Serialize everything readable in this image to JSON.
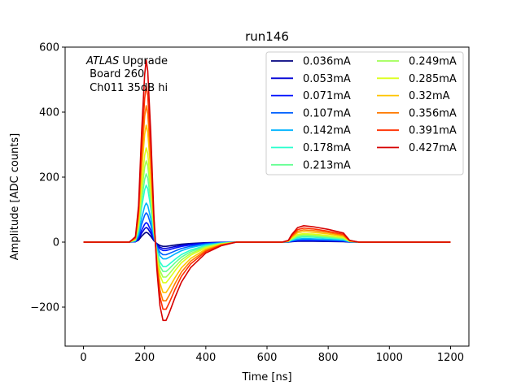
{
  "chart_data": {
    "type": "line",
    "title": "run146",
    "xlabel": "Time [ns]",
    "ylabel": "Amplitude [ADC counts]",
    "xlim": [
      -60,
      1260
    ],
    "ylim": [
      -320,
      600
    ],
    "xticks": [
      0,
      200,
      400,
      600,
      800,
      1000,
      1200
    ],
    "yticks": [
      -200,
      0,
      200,
      400,
      600
    ],
    "ytick_labels": [
      "−200",
      "0",
      "200",
      "400",
      "600"
    ],
    "annotation": {
      "italic": "ATLAS",
      "line1_rest": " Upgrade",
      "line2": " Board 260",
      "line3": " Ch011 35dB hi"
    },
    "legend_position": "upper right",
    "legend_columns": 2,
    "grid": false,
    "x": [
      0,
      25,
      50,
      75,
      100,
      125,
      150,
      170,
      180,
      190,
      200,
      205,
      210,
      220,
      230,
      240,
      250,
      260,
      270,
      280,
      300,
      320,
      350,
      400,
      450,
      500,
      550,
      600,
      650,
      670,
      680,
      700,
      720,
      750,
      800,
      850,
      870,
      900,
      950,
      1000,
      1050,
      1100,
      1150,
      1200
    ],
    "pulse_shape": [
      0,
      0,
      0,
      0,
      0,
      0,
      0,
      0.03,
      0.2,
      0.6,
      0.92,
      1.0,
      0.94,
      0.6,
      0.15,
      -0.15,
      -0.35,
      -0.43,
      -0.43,
      -0.39,
      -0.3,
      -0.22,
      -0.14,
      -0.06,
      -0.02,
      0,
      0,
      0,
      0,
      0.01,
      0.04,
      0.08,
      0.09,
      0.085,
      0.07,
      0.05,
      0.01,
      0,
      0,
      0,
      0,
      0,
      0,
      0
    ],
    "series": [
      {
        "name": "0.036mA",
        "color": "#00007f",
        "peak": 30
      },
      {
        "name": "0.053mA",
        "color": "#0000d6",
        "peak": 45
      },
      {
        "name": "0.071mA",
        "color": "#0010ff",
        "peak": 60
      },
      {
        "name": "0.107mA",
        "color": "#0060ff",
        "peak": 90
      },
      {
        "name": "0.142mA",
        "color": "#00b4ff",
        "peak": 120
      },
      {
        "name": "0.178mA",
        "color": "#29ffce",
        "peak": 175
      },
      {
        "name": "0.213mA",
        "color": "#65ff92",
        "peak": 210
      },
      {
        "name": "0.249mA",
        "color": "#a0ff56",
        "peak": 250
      },
      {
        "name": "0.285mA",
        "color": "#dcff1a",
        "peak": 290
      },
      {
        "name": "0.32mA",
        "color": "#ffc400",
        "peak": 360
      },
      {
        "name": "0.356mA",
        "color": "#ff7a00",
        "peak": 420
      },
      {
        "name": "0.391mA",
        "color": "#ff3000",
        "peak": 480
      },
      {
        "name": "0.427mA",
        "color": "#d60000",
        "peak": 560
      }
    ]
  }
}
